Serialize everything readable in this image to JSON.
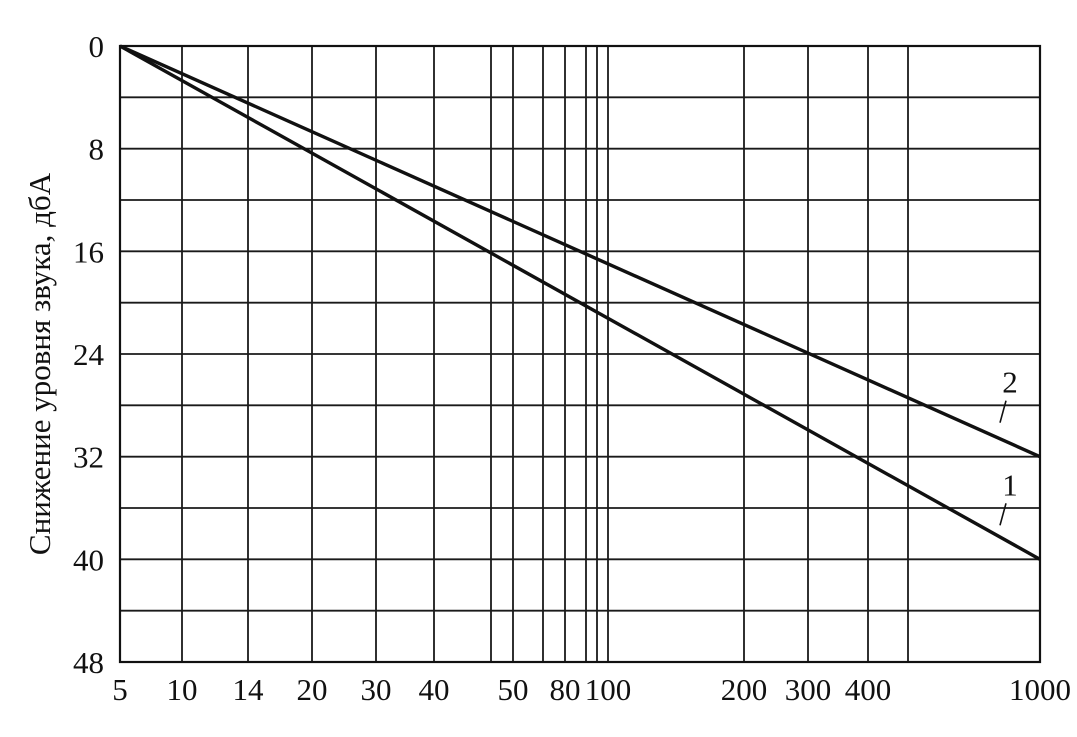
{
  "chart_data": {
    "type": "line",
    "ylabel": "Снижение уровня звука, дбА",
    "xlabel": "",
    "y_ticks": [
      "0",
      "8",
      "16",
      "24",
      "32",
      "40",
      "48"
    ],
    "x_ticks": [
      "5",
      "10",
      "14",
      "20",
      "30",
      "40",
      "50",
      "80",
      "100",
      "200",
      "300",
      "400",
      "1000"
    ],
    "ylim": [
      0,
      48
    ],
    "y_inverted": true,
    "grid": true,
    "series": [
      {
        "name": "1",
        "x": [
          "5",
          "1000"
        ],
        "y": [
          0,
          40
        ]
      },
      {
        "name": "2",
        "x": [
          "5",
          "1000"
        ],
        "y": [
          0,
          32
        ]
      }
    ]
  }
}
